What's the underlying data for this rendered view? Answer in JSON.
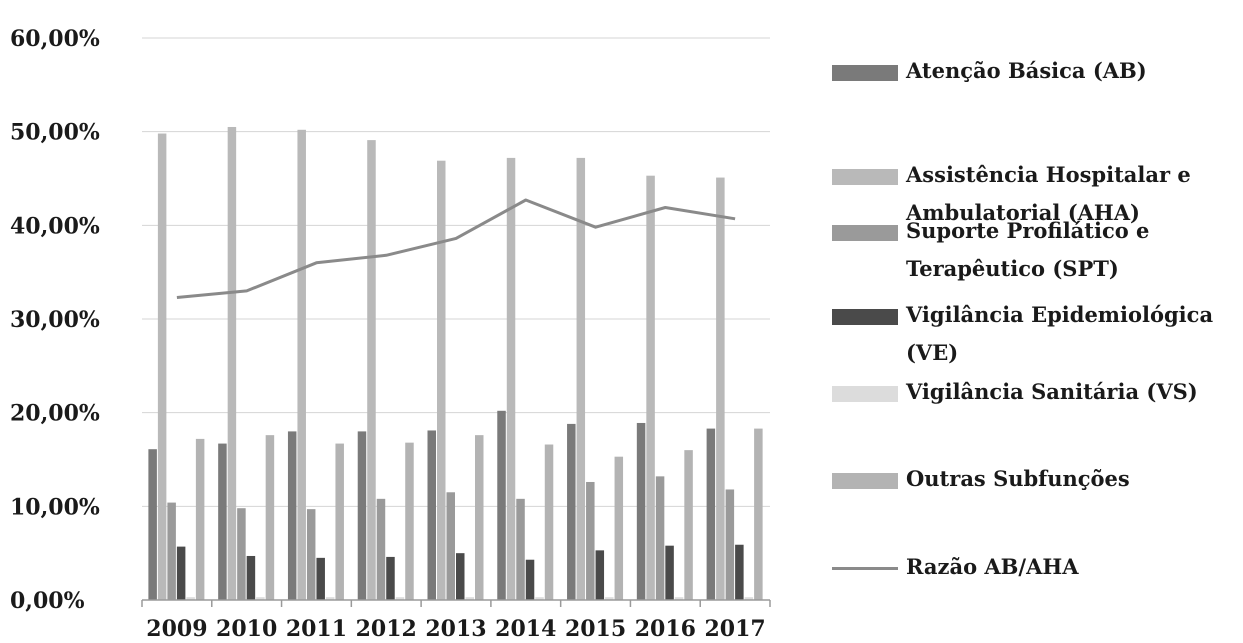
{
  "chart_data": {
    "type": "bar",
    "categories": [
      "2009",
      "2010",
      "2011",
      "2012",
      "2013",
      "2014",
      "2015",
      "2016",
      "2017"
    ],
    "yticks": [
      "0,00%",
      "10,00%",
      "20,00%",
      "30,00%",
      "40,00%",
      "50,00%",
      "60,00%"
    ],
    "ylim": [
      0,
      60
    ],
    "grid": true,
    "legend_position": "right",
    "series": [
      {
        "name": "Atenção Básica  (AB)",
        "kind": "bar",
        "color": "#7a7a7a",
        "values": [
          16.1,
          16.7,
          18.0,
          18.0,
          18.1,
          20.2,
          18.8,
          18.9,
          18.3
        ]
      },
      {
        "name": "Assistência Hospitalar e Ambulatorial  (AHA)",
        "kind": "bar",
        "color": "#b9b9b9",
        "values": [
          49.8,
          50.5,
          50.2,
          49.1,
          46.9,
          47.2,
          47.2,
          45.3,
          45.1
        ]
      },
      {
        "name": "Suporte Profilático e Terapêutico  (SPT)",
        "kind": "bar",
        "color": "#9a9a9a",
        "values": [
          10.4,
          9.8,
          9.7,
          10.8,
          11.5,
          10.8,
          12.6,
          13.2,
          11.8
        ]
      },
      {
        "name": "Vigilância Epidemiológica (VE)",
        "kind": "bar",
        "color": "#4a4a4a",
        "values": [
          5.7,
          4.7,
          4.5,
          4.6,
          5.0,
          4.3,
          5.3,
          5.8,
          5.9
        ]
      },
      {
        "name": "Vigilância Sanitária  (VS)",
        "kind": "bar",
        "color": "#dcdcdc",
        "values": [
          0.3,
          0.3,
          0.3,
          0.3,
          0.3,
          0.3,
          0.3,
          0.3,
          0.3
        ]
      },
      {
        "name": "Outras Subfunções",
        "kind": "bar",
        "color": "#b3b3b3",
        "values": [
          17.2,
          17.6,
          16.7,
          16.8,
          17.6,
          16.6,
          15.3,
          16.0,
          18.3
        ]
      },
      {
        "name": "Razão AB/AHA",
        "kind": "line",
        "color": "#8a8a8a",
        "values": [
          32.3,
          33.0,
          36.0,
          36.8,
          38.6,
          42.7,
          39.8,
          41.9,
          40.7
        ]
      }
    ]
  }
}
